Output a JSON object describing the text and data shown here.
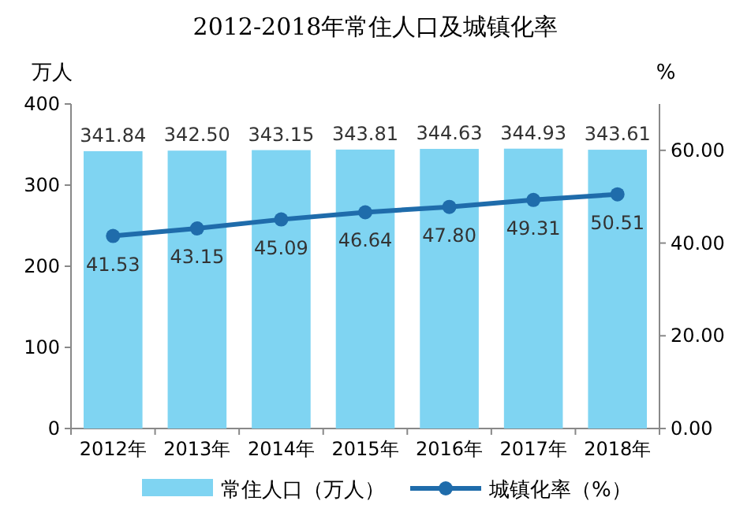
{
  "chart_data": {
    "type": "bar",
    "title": "2012-2018年常住人口及城镇化率",
    "ylabel": "万人",
    "y2label": "%",
    "categories": [
      "2012年",
      "2013年",
      "2014年",
      "2015年",
      "2016年",
      "2017年",
      "2018年"
    ],
    "series": [
      {
        "name": "常住人口（万人）",
        "color": "#7fd4f2",
        "values": [
          341.84,
          342.5,
          343.15,
          343.81,
          344.63,
          344.93,
          343.61
        ],
        "value_labels": [
          "341.84",
          "342.50",
          "343.15",
          "343.81",
          "344.63",
          "344.93",
          "343.61"
        ]
      },
      {
        "name": "城镇化率（%）",
        "type": "line",
        "axis": "y2",
        "color": "#1f6cab",
        "marker": "circle",
        "values": [
          41.53,
          43.15,
          45.09,
          46.64,
          47.8,
          49.31,
          50.51
        ],
        "value_labels": [
          "41.53",
          "43.15",
          "45.09",
          "46.64",
          "47.80",
          "49.31",
          "50.51"
        ]
      }
    ],
    "ylim": [
      0,
      400
    ],
    "yticks": [
      0,
      100,
      200,
      300,
      400
    ],
    "y2lim": [
      0,
      70
    ],
    "y2ticks": [
      {
        "value": 0,
        "label": "0.00"
      },
      {
        "value": 20,
        "label": "20.00"
      },
      {
        "value": 40,
        "label": "40.00"
      },
      {
        "value": 60,
        "label": "60.00"
      }
    ],
    "legend": "bottom"
  }
}
